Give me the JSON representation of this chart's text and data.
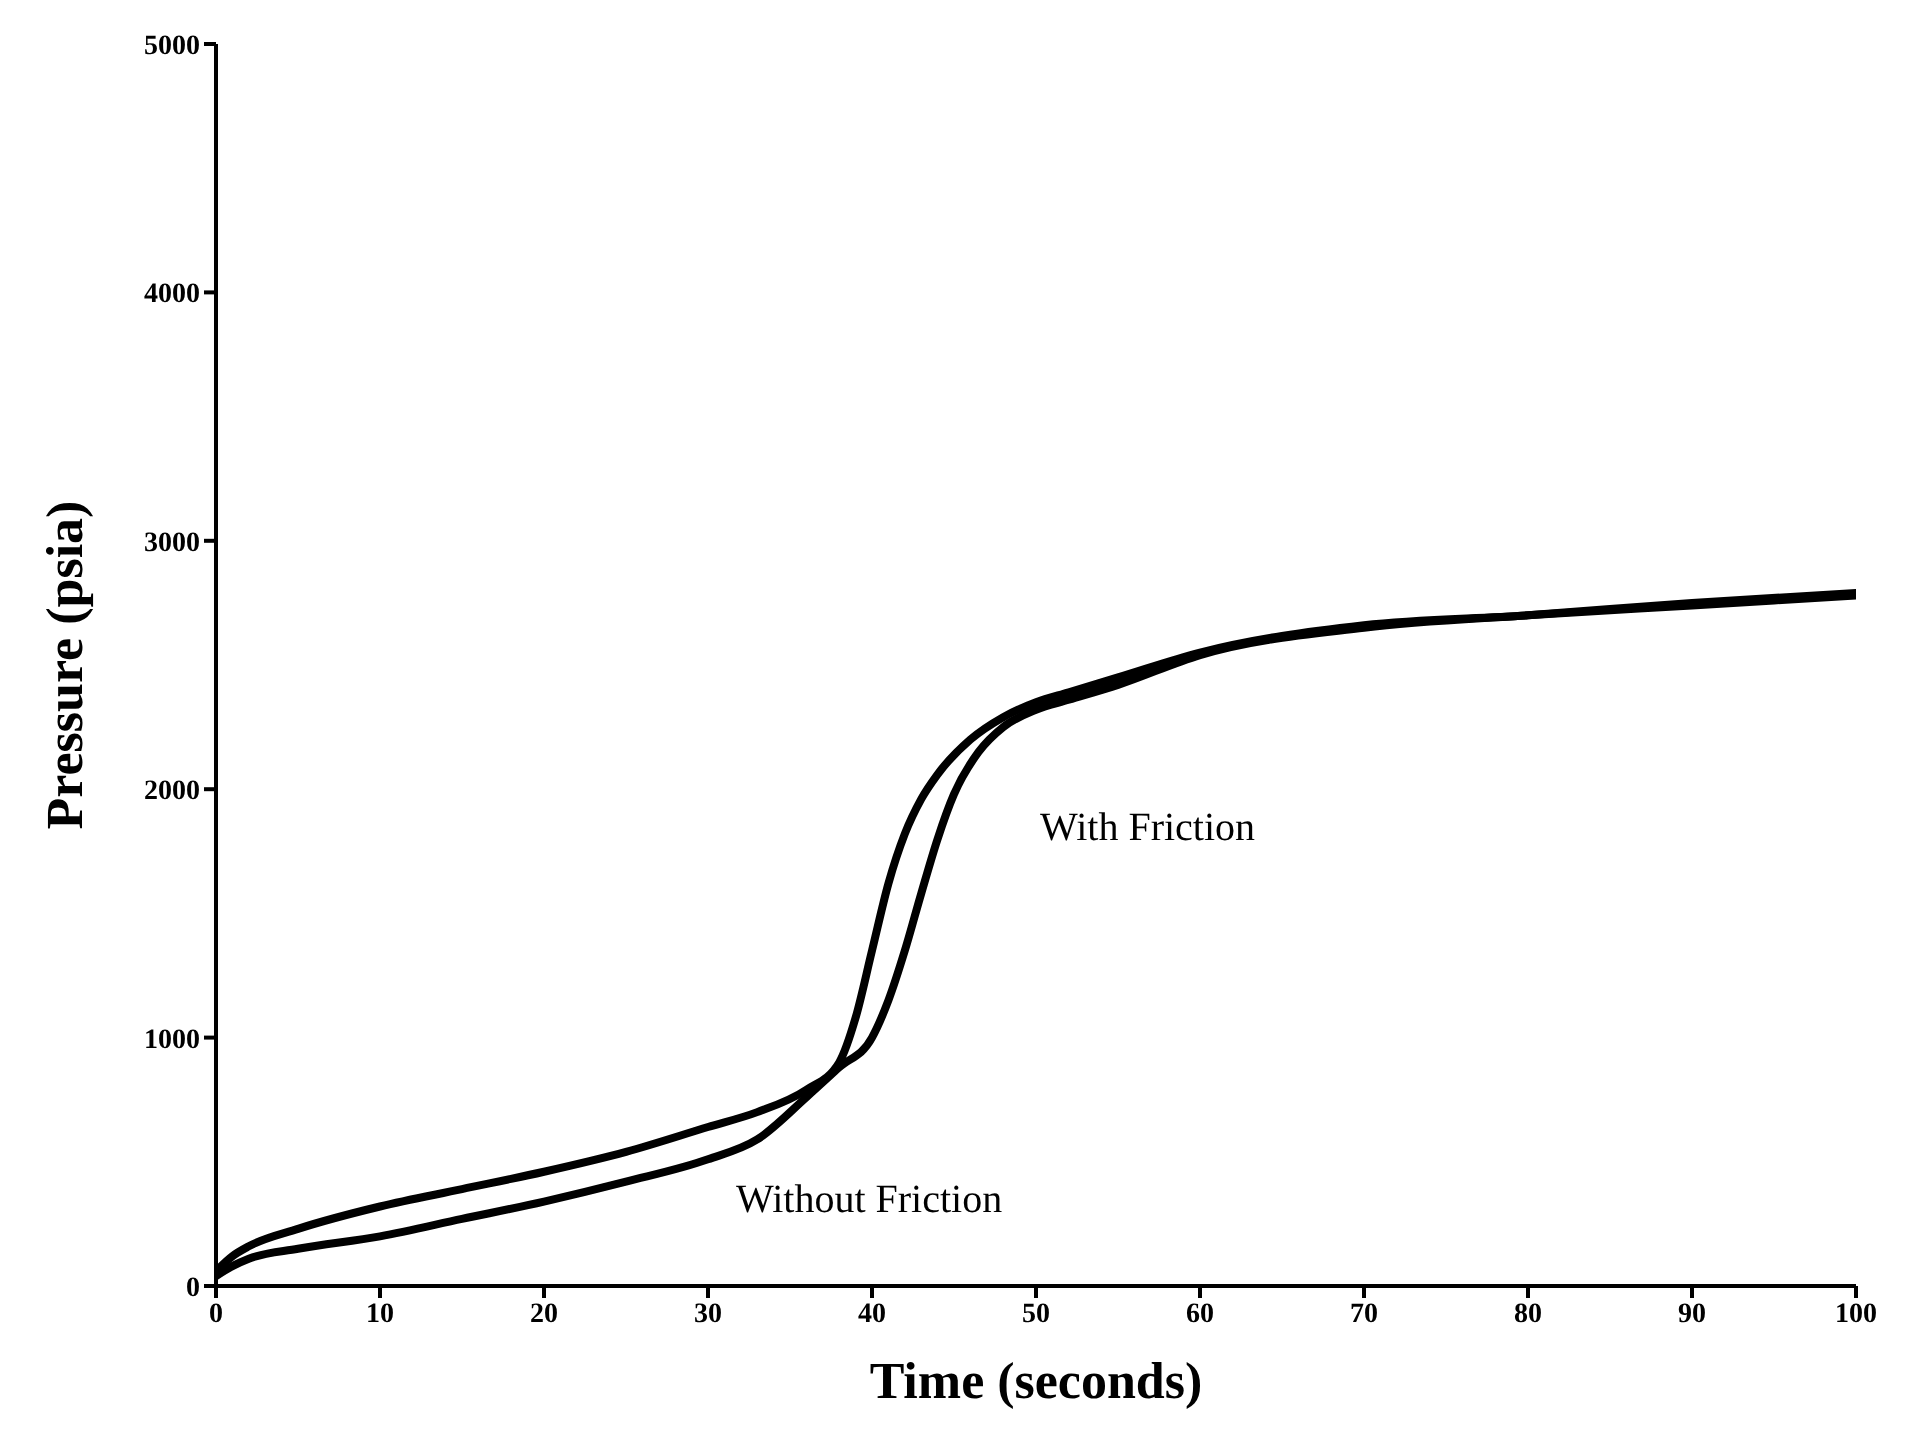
{
  "chart_data": {
    "type": "line",
    "xlabel": "Time (seconds)",
    "ylabel": "Pressure (psia)",
    "xlim": [
      0,
      100
    ],
    "ylim": [
      0,
      5000
    ],
    "xticks": [
      0,
      10,
      20,
      30,
      40,
      50,
      60,
      70,
      80,
      90,
      100
    ],
    "yticks": [
      0,
      1000,
      2000,
      3000,
      4000,
      5000
    ],
    "grid": false,
    "marker": "none",
    "line_style": "solid",
    "annotations": [
      "With Friction",
      "Without Friction"
    ],
    "series": [
      {
        "color": "#000000",
        "x": [
          0,
          1,
          2,
          5,
          10,
          15,
          20,
          25,
          30,
          33,
          36,
          38,
          39,
          40,
          41,
          42,
          43,
          44,
          46,
          48,
          50,
          52,
          55,
          60,
          70,
          80,
          90,
          100
        ],
        "values": [
          60,
          120,
          160,
          230,
          320,
          390,
          460,
          540,
          640,
          700,
          790,
          900,
          1080,
          1350,
          1620,
          1820,
          1960,
          2060,
          2200,
          2290,
          2350,
          2390,
          2450,
          2550,
          2660,
          2700,
          2750,
          2790
        ]
      },
      {
        "color": "#000000",
        "x": [
          0,
          1,
          2,
          5,
          10,
          15,
          20,
          25,
          30,
          33,
          36,
          38,
          40,
          41,
          42,
          43,
          44,
          45,
          46.5,
          48,
          50,
          52,
          55,
          60,
          70,
          80,
          90,
          100
        ],
        "values": [
          40,
          80,
          110,
          150,
          200,
          270,
          340,
          420,
          510,
          590,
          760,
          880,
          1000,
          1150,
          1350,
          1580,
          1800,
          1980,
          2150,
          2250,
          2320,
          2360,
          2420,
          2540,
          2650,
          2700,
          2740,
          2780
        ]
      }
    ]
  }
}
